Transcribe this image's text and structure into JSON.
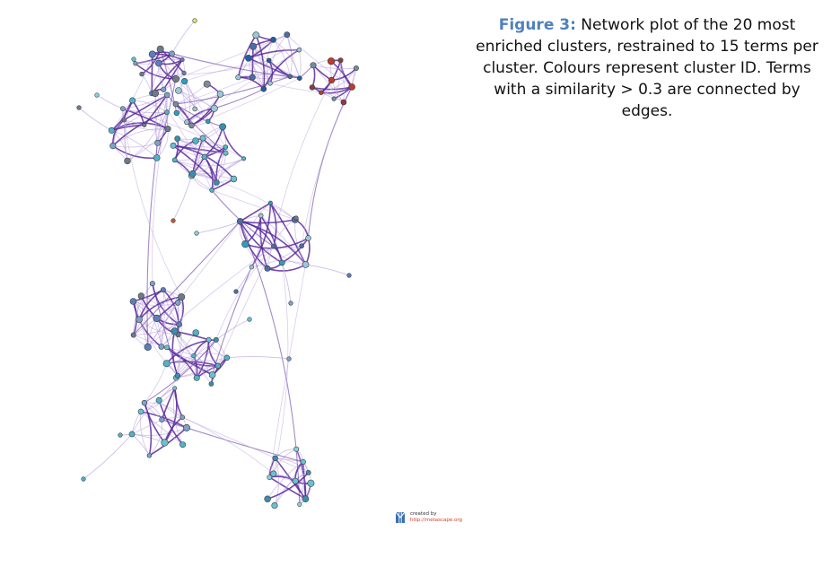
{
  "caption": {
    "label": "Figure 3:",
    "text": " Network plot of the 20 most enriched clusters, restrained to 15 terms per cluster. Colours represent cluster ID. Terms with a similarity > 0.3 are connected by edges."
  },
  "credit": {
    "created_by": "created by",
    "url": "http://metascape.org"
  },
  "colors": {
    "caption_label": "#4f81bd",
    "caption_text": "#111111",
    "edge_strong": "#5a2a9c",
    "edge_weak": "#b9a3dc",
    "node_stroke": "#3c3c3c",
    "credit_url": "#d23a2a"
  },
  "network": {
    "node_palette": [
      "#5b7fb8",
      "#6c7a8c",
      "#7aa3c8",
      "#4fb3c9",
      "#67c1d3",
      "#3a8fb0",
      "#86d1e0",
      "#2f6fa6",
      "#3fae8f",
      "#d6f04a",
      "#b8e986",
      "#c55a2a",
      "#c0392b",
      "#8e3a3a",
      "#6f8fa0",
      "#1f5fa0",
      "#4a6ea9",
      "#9cc7d8",
      "#2a9fbf",
      "#7e8a9a"
    ]
  }
}
